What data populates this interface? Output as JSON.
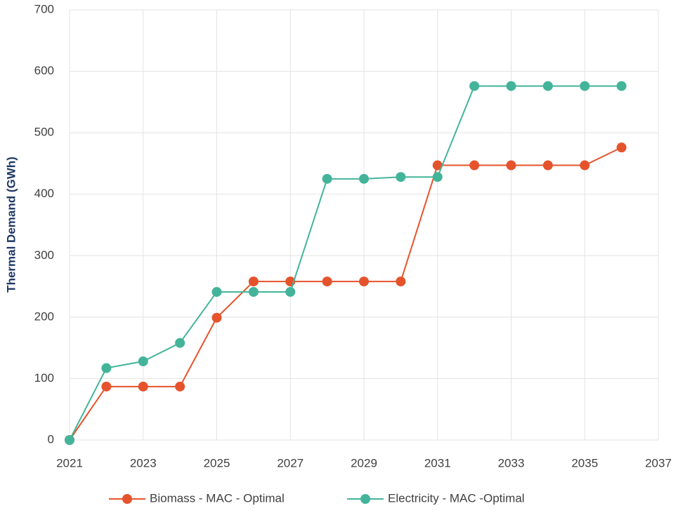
{
  "chart_data": {
    "type": "line",
    "y_label": "Thermal Demand (GWh)",
    "x": [
      2021,
      2022,
      2023,
      2024,
      2025,
      2026,
      2027,
      2028,
      2029,
      2030,
      2031,
      2032,
      2033,
      2034,
      2035,
      2036
    ],
    "series": [
      {
        "name": "Biomass - MAC - Optimal",
        "color": "#e5532c",
        "values": [
          0,
          87,
          87,
          87,
          199,
          258,
          258,
          258,
          258,
          258,
          447,
          447,
          447,
          447,
          447,
          476
        ]
      },
      {
        "name": "Electricity - MAC -Optimal",
        "color": "#43b49a",
        "values": [
          0,
          117,
          128,
          158,
          241,
          241,
          241,
          425,
          425,
          428,
          428,
          576,
          576,
          576,
          576,
          576
        ]
      }
    ],
    "xlim": [
      2021,
      2037
    ],
    "xticks": [
      2021,
      2023,
      2025,
      2027,
      2029,
      2031,
      2033,
      2035,
      2037
    ],
    "ylim": [
      0,
      700
    ],
    "yticks": [
      0,
      100,
      200,
      300,
      400,
      500,
      600,
      700
    ],
    "grid": true,
    "legend": "bottom"
  }
}
